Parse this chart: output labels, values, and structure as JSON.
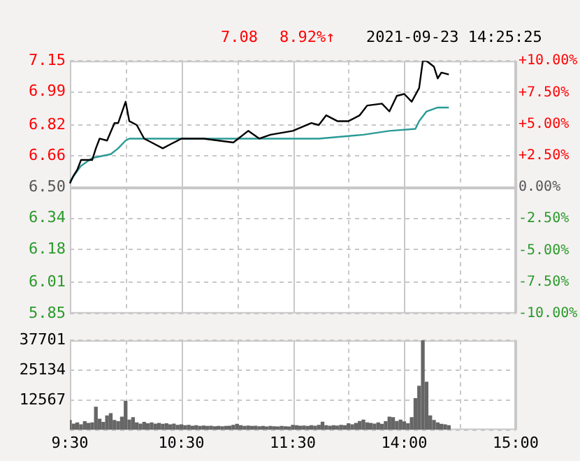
{
  "chart_data": [
    {
      "type": "line",
      "annotations": [
        "7.08",
        "8.92%↑",
        "2021-09-23 14:25:25"
      ],
      "categories": [
        null,
        null,
        null,
        null,
        null,
        null,
        null,
        null,
        null,
        null,
        null,
        null,
        null,
        null,
        null,
        null,
        null,
        null,
        null,
        null,
        null,
        null,
        null,
        null,
        null,
        null,
        null,
        null,
        null,
        null,
        null,
        null,
        null,
        null,
        null,
        null,
        null,
        null,
        null,
        null,
        null,
        null,
        null,
        null,
        null,
        null,
        null,
        null,
        null,
        null,
        null,
        null,
        null,
        null,
        null,
        null,
        null,
        null,
        null,
        null,
        null,
        null,
        null,
        null,
        null,
        null,
        null,
        null,
        null,
        null,
        null,
        null,
        null,
        null,
        null,
        null,
        null,
        null,
        null,
        null,
        null,
        null,
        null,
        null,
        null,
        null,
        null,
        null,
        null,
        null,
        null,
        null,
        null,
        null,
        null,
        null,
        null,
        null,
        null,
        null,
        null,
        null,
        null,
        null,
        null,
        null,
        null,
        null,
        null,
        null,
        null,
        null,
        null,
        null,
        null,
        null,
        null,
        null,
        null,
        null,
        null
      ],
      "ylim": [
        5.85,
        7.15
      ],
      "yticks": [
        5.85,
        6.01,
        6.18,
        6.34,
        {
          "value": 6.5,
          "label": "6.50"
        },
        6.66,
        6.82,
        6.99,
        7.15
      ],
      "y2lim": [
        -10,
        10
      ],
      "y2ticks": [
        {
          "value": -10,
          "label": "-10.00%"
        },
        {
          "value": -7.5,
          "label": "-7.50%"
        },
        {
          "value": -5,
          "label": "-5.00%"
        },
        {
          "value": -2.5,
          "label": "-2.50%"
        },
        {
          "value": 0,
          "label": "0.00%"
        },
        {
          "value": 2.5,
          "label": "+2.50%"
        },
        {
          "value": 5,
          "label": "+5.00%"
        },
        {
          "value": 7.5,
          "label": "+7.50%"
        },
        {
          "value": 10,
          "label": "+10.00%"
        }
      ],
      "tick_labels": "y",
      "grid": true,
      "legend": false,
      "marker": "none",
      "line_style": "solid",
      "ref_lines": [
        {
          "axis": "y",
          "value": 6.5,
          "color": "#c8c8c8"
        }
      ],
      "series": [
        {
          "color": "#000000",
          "values": [
            6.52,
            6.56,
            6.59,
            6.64,
            null,
            null,
            6.64,
            6.7,
            6.75,
            null,
            6.74,
            null,
            6.83,
            6.83,
            null,
            6.94,
            6.84,
            null,
            6.82,
            null,
            6.75,
            null,
            6.73,
            null,
            null,
            6.7,
            null,
            6.72,
            null,
            null,
            6.75,
            null,
            null,
            null,
            null,
            null,
            6.75,
            null,
            null,
            null,
            null,
            null,
            null,
            null,
            6.73,
            null,
            null,
            null,
            6.79,
            null,
            null,
            6.75,
            null,
            null,
            6.77,
            null,
            null,
            null,
            null,
            null,
            6.79,
            null,
            null,
            null,
            null,
            6.83,
            null,
            6.82,
            null,
            6.87,
            null,
            null,
            6.84,
            null,
            null,
            6.84,
            null,
            null,
            6.87,
            null,
            6.92,
            null,
            null,
            null,
            6.93,
            null,
            6.89,
            null,
            6.97,
            null,
            6.98,
            null,
            6.94,
            null,
            7.01,
            7.15,
            7.15,
            null,
            7.12,
            7.06,
            7.09,
            null,
            7.08,
            null,
            null,
            null,
            null,
            null,
            null,
            null,
            null,
            null,
            null,
            null,
            null,
            null,
            null,
            null,
            null,
            null,
            null
          ]
        },
        {
          "color": "#2a9a96",
          "values": [
            6.53,
            null,
            null,
            6.61,
            null,
            null,
            6.65,
            null,
            null,
            null,
            null,
            6.67,
            null,
            6.7,
            null,
            6.74,
            6.75,
            null,
            null,
            null,
            null,
            null,
            null,
            null,
            null,
            null,
            null,
            null,
            null,
            null,
            null,
            null,
            null,
            null,
            null,
            null,
            null,
            null,
            null,
            null,
            null,
            null,
            null,
            null,
            null,
            null,
            null,
            null,
            null,
            null,
            null,
            null,
            null,
            null,
            null,
            null,
            null,
            null,
            null,
            null,
            null,
            null,
            null,
            null,
            null,
            null,
            null,
            6.75,
            null,
            null,
            null,
            null,
            null,
            null,
            null,
            null,
            null,
            null,
            null,
            6.77,
            null,
            null,
            null,
            null,
            null,
            null,
            6.79,
            null,
            null,
            null,
            null,
            null,
            null,
            6.8,
            6.84,
            null,
            6.89,
            null,
            null,
            6.91,
            null,
            null,
            6.91,
            null,
            null,
            null,
            null,
            null,
            null,
            null,
            null,
            null,
            null,
            null,
            null,
            null,
            null,
            null,
            null,
            null,
            null
          ]
        }
      ]
    },
    {
      "type": "bar",
      "categories": [
        "9:30",
        null,
        null,
        null,
        null,
        null,
        null,
        null,
        null,
        null,
        null,
        null,
        null,
        null,
        null,
        null,
        null,
        null,
        null,
        null,
        null,
        null,
        null,
        null,
        null,
        null,
        null,
        null,
        null,
        null,
        "10:30",
        null,
        null,
        null,
        null,
        null,
        null,
        null,
        null,
        null,
        null,
        null,
        null,
        null,
        null,
        null,
        null,
        null,
        null,
        null,
        null,
        null,
        null,
        null,
        null,
        null,
        null,
        null,
        null,
        null,
        "11:30",
        null,
        null,
        null,
        null,
        null,
        null,
        null,
        null,
        null,
        null,
        null,
        null,
        null,
        null,
        null,
        null,
        null,
        null,
        null,
        null,
        null,
        null,
        null,
        null,
        null,
        null,
        null,
        null,
        null,
        "14:00",
        null,
        null,
        null,
        null,
        null,
        null,
        null,
        null,
        null,
        null,
        null,
        null,
        null,
        null,
        null,
        null,
        null,
        null,
        null,
        null,
        null,
        null,
        null,
        null,
        null,
        null,
        null,
        null,
        null,
        "15:00"
      ],
      "ylim": [
        0,
        37701
      ],
      "yticks": [
        {
          "value": 0,
          "label": null
        },
        12567,
        25134,
        37701
      ],
      "grid": true,
      "legend": false,
      "series": [
        {
          "color": "#666666",
          "values": [
            4000,
            2500,
            3000,
            2200,
            3500,
            2800,
            3000,
            9600,
            4500,
            3200,
            5900,
            6900,
            4000,
            3500,
            5400,
            12100,
            4200,
            5200,
            3000,
            2500,
            3200,
            2600,
            3000,
            2500,
            2800,
            2400,
            2600,
            2200,
            2500,
            2000,
            2200,
            1800,
            2000,
            1600,
            1800,
            1500,
            1700,
            1500,
            1600,
            1400,
            1500,
            1400,
            1500,
            1600,
            2000,
            2400,
            1800,
            1500,
            1700,
            1500,
            1600,
            1400,
            1500,
            1300,
            1500,
            1400,
            1300,
            1500,
            1400,
            1300,
            2000,
            1800,
            1600,
            1700,
            1500,
            1800,
            1600,
            2000,
            3300,
            1800,
            1600,
            1800,
            1700,
            2000,
            1800,
            2600,
            2200,
            2800,
            3600,
            4200,
            3000,
            2800,
            2500,
            3000,
            2400,
            3500,
            5400,
            5200,
            3600,
            4200,
            3400,
            2600,
            5200,
            13200,
            18400,
            37701,
            20100,
            5900,
            4000,
            3000,
            2400,
            2200,
            1800,
            null,
            null,
            null,
            null,
            null,
            null,
            null,
            null,
            null,
            null,
            null,
            null,
            null,
            null,
            null,
            null,
            null,
            null
          ]
        }
      ]
    }
  ]
}
